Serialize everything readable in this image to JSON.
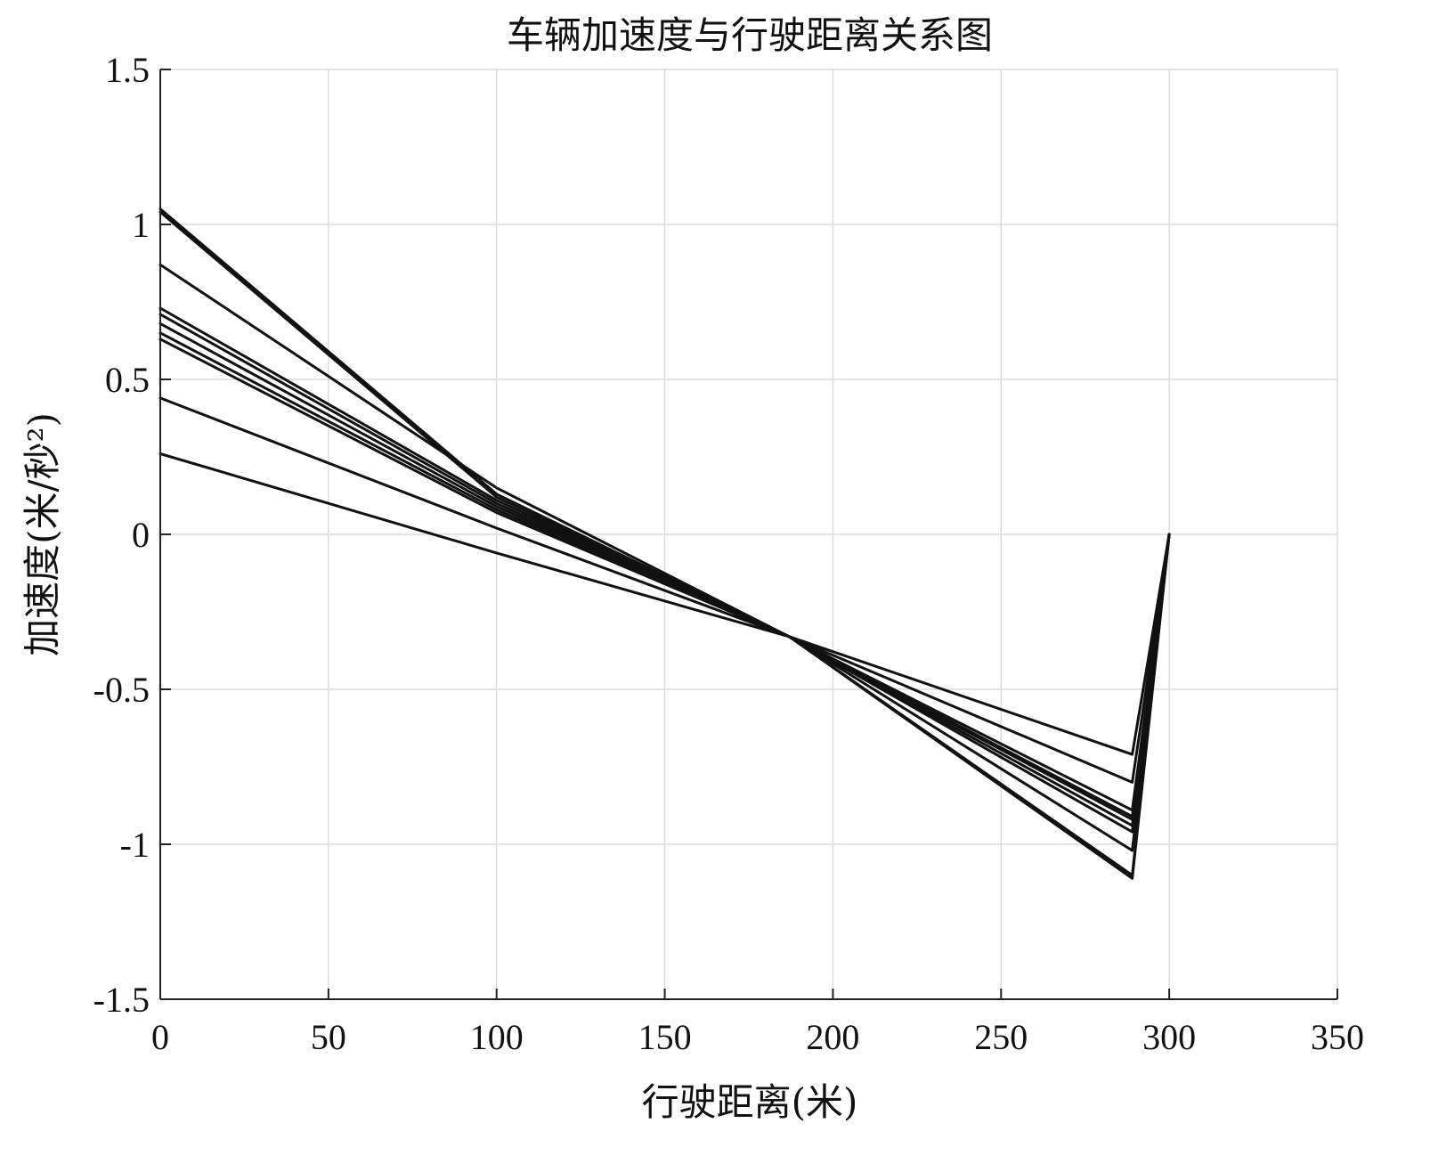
{
  "chart_data": {
    "type": "line",
    "title": "车辆加速度与行驶距离关系图",
    "xlabel": "行驶距离(米)",
    "ylabel": "加速度(米/秒²)",
    "xlim": [
      0,
      350
    ],
    "ylim": [
      -1.5,
      1.5
    ],
    "xticks": [
      0,
      50,
      100,
      150,
      200,
      250,
      300,
      350
    ],
    "yticks": [
      -1.5,
      -1,
      -0.5,
      0,
      0.5,
      1,
      1.5
    ],
    "xtick_labels": [
      "0",
      "50",
      "100",
      "150",
      "200",
      "250",
      "300",
      "350"
    ],
    "ytick_labels": [
      "-1.5",
      "-1",
      "-0.5",
      "0",
      "0.5",
      "1",
      "1.5"
    ],
    "grid": true,
    "legend": "none",
    "line_color": "#111111",
    "grid_color": "#dcdcdc",
    "series": [
      {
        "x": [
          0,
          100,
          187,
          289,
          300
        ],
        "y": [
          1.05,
          0.13,
          -0.33,
          -1.11,
          0
        ]
      },
      {
        "x": [
          0,
          100,
          187,
          289,
          300
        ],
        "y": [
          1.04,
          0.12,
          -0.33,
          -1.1,
          0
        ]
      },
      {
        "x": [
          0,
          100,
          187,
          289,
          300
        ],
        "y": [
          0.87,
          0.15,
          -0.33,
          -1.02,
          0
        ]
      },
      {
        "x": [
          0,
          100,
          187,
          289,
          300
        ],
        "y": [
          0.73,
          0.11,
          -0.33,
          -0.96,
          0
        ]
      },
      {
        "x": [
          0,
          100,
          187,
          289,
          300
        ],
        "y": [
          0.71,
          0.1,
          -0.33,
          -0.94,
          0
        ]
      },
      {
        "x": [
          0,
          100,
          187,
          289,
          300
        ],
        "y": [
          0.68,
          0.09,
          -0.33,
          -0.92,
          0
        ]
      },
      {
        "x": [
          0,
          100,
          187,
          289,
          300
        ],
        "y": [
          0.65,
          0.08,
          -0.33,
          -0.91,
          0
        ]
      },
      {
        "x": [
          0,
          100,
          187,
          289,
          300
        ],
        "y": [
          0.63,
          0.07,
          -0.33,
          -0.89,
          0
        ]
      },
      {
        "x": [
          0,
          100,
          187,
          289,
          300
        ],
        "y": [
          0.44,
          0.02,
          -0.33,
          -0.8,
          0
        ]
      },
      {
        "x": [
          0,
          100,
          187,
          289,
          300
        ],
        "y": [
          0.26,
          -0.06,
          -0.33,
          -0.71,
          0
        ]
      }
    ]
  }
}
